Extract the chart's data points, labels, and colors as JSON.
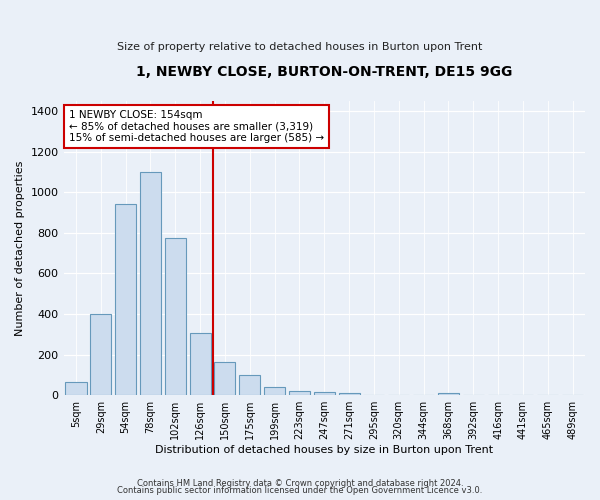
{
  "title": "1, NEWBY CLOSE, BURTON-ON-TRENT, DE15 9GG",
  "subtitle": "Size of property relative to detached houses in Burton upon Trent",
  "xlabel": "Distribution of detached houses by size in Burton upon Trent",
  "ylabel": "Number of detached properties",
  "bar_color": "#ccdcee",
  "bar_edge_color": "#6699bb",
  "categories": [
    "5sqm",
    "29sqm",
    "54sqm",
    "78sqm",
    "102sqm",
    "126sqm",
    "150sqm",
    "175sqm",
    "199sqm",
    "223sqm",
    "247sqm",
    "271sqm",
    "295sqm",
    "320sqm",
    "344sqm",
    "368sqm",
    "392sqm",
    "416sqm",
    "441sqm",
    "465sqm",
    "489sqm"
  ],
  "values": [
    65,
    400,
    940,
    1100,
    775,
    305,
    165,
    100,
    38,
    20,
    15,
    12,
    0,
    0,
    0,
    12,
    0,
    0,
    0,
    0,
    0
  ],
  "vline_color": "#cc0000",
  "annotation_line1": "1 NEWBY CLOSE: 154sqm",
  "annotation_line2": "← 85% of detached houses are smaller (3,319)",
  "annotation_line3": "15% of semi-detached houses are larger (585) →",
  "annotation_box_color": "#ffffff",
  "annotation_box_edge": "#cc0000",
  "ylim": [
    0,
    1450
  ],
  "yticks": [
    0,
    200,
    400,
    600,
    800,
    1000,
    1200,
    1400
  ],
  "footnote1": "Contains HM Land Registry data © Crown copyright and database right 2024.",
  "footnote2": "Contains public sector information licensed under the Open Government Licence v3.0.",
  "bg_color": "#eaf0f8",
  "plot_bg_color": "#eaf0f8"
}
